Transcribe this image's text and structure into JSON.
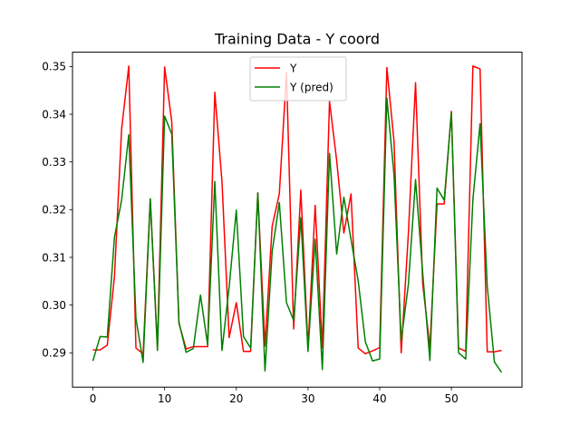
{
  "chart_data": {
    "type": "line",
    "title": "Training Data - Y coord",
    "xlabel": "",
    "ylabel": "",
    "xlim": [
      -2.85,
      59.85
    ],
    "ylim": [
      0.2828,
      0.353
    ],
    "xticks": [
      0,
      10,
      20,
      30,
      40,
      50
    ],
    "yticks": [
      0.29,
      0.3,
      0.31,
      0.32,
      0.33,
      0.34,
      0.35
    ],
    "ytick_labels": [
      "0.29",
      "0.30",
      "0.31",
      "0.32",
      "0.33",
      "0.34",
      "0.35"
    ],
    "grid": false,
    "legend_position": "top-center",
    "series": [
      {
        "name": "Y",
        "color": "#ff0000",
        "x": [
          0,
          1,
          2,
          3,
          4,
          5,
          6,
          7,
          8,
          9,
          10,
          11,
          12,
          13,
          14,
          15,
          16,
          17,
          18,
          19,
          20,
          21,
          22,
          23,
          24,
          25,
          26,
          27,
          28,
          29,
          30,
          31,
          32,
          33,
          34,
          35,
          36,
          37,
          38,
          39,
          40,
          41,
          42,
          43,
          44,
          45,
          46,
          47,
          48,
          49,
          50,
          51,
          52,
          53,
          54,
          55,
          56,
          57
        ],
        "values": [
          0.2906,
          0.2906,
          0.2916,
          0.3059,
          0.3369,
          0.3501,
          0.291,
          0.2898,
          0.3222,
          0.291,
          0.3499,
          0.3384,
          0.2962,
          0.2908,
          0.2913,
          0.2913,
          0.2913,
          0.3446,
          0.3259,
          0.2932,
          0.3005,
          0.2903,
          0.2903,
          0.3235,
          0.2914,
          0.3165,
          0.3233,
          0.3487,
          0.295,
          0.3241,
          0.291,
          0.3209,
          0.291,
          0.3427,
          0.3303,
          0.3151,
          0.3233,
          0.291,
          0.2898,
          0.2904,
          0.2911,
          0.3498,
          0.3343,
          0.29,
          0.315,
          0.3466,
          0.3045,
          0.2911,
          0.3212,
          0.3212,
          0.3406,
          0.291,
          0.2903,
          0.3501,
          0.3495,
          0.2902,
          0.2902,
          0.2905
        ]
      },
      {
        "name": "Y (pred)",
        "color": "#008000",
        "x": [
          0,
          1,
          2,
          3,
          4,
          5,
          6,
          7,
          8,
          9,
          10,
          11,
          12,
          13,
          14,
          15,
          16,
          17,
          18,
          19,
          20,
          21,
          22,
          23,
          24,
          25,
          26,
          27,
          28,
          29,
          30,
          31,
          32,
          33,
          34,
          35,
          36,
          37,
          38,
          39,
          40,
          41,
          42,
          43,
          44,
          45,
          46,
          47,
          48,
          49,
          50,
          51,
          52,
          53,
          54,
          55,
          56,
          57
        ],
        "values": [
          0.2883,
          0.2934,
          0.2933,
          0.3142,
          0.322,
          0.3357,
          0.2972,
          0.288,
          0.3223,
          0.2905,
          0.3396,
          0.3358,
          0.2964,
          0.2901,
          0.2909,
          0.3021,
          0.2917,
          0.3259,
          0.2905,
          0.3038,
          0.3199,
          0.2934,
          0.291,
          0.3235,
          0.2862,
          0.3112,
          0.3215,
          0.3005,
          0.2968,
          0.3183,
          0.2903,
          0.3138,
          0.2865,
          0.3318,
          0.3107,
          0.3226,
          0.3137,
          0.3051,
          0.2923,
          0.2883,
          0.2887,
          0.3434,
          0.3273,
          0.2926,
          0.3043,
          0.3263,
          0.3067,
          0.2884,
          0.3245,
          0.322,
          0.3403,
          0.29,
          0.2887,
          0.3221,
          0.338,
          0.304,
          0.2881,
          0.2859
        ]
      }
    ]
  }
}
